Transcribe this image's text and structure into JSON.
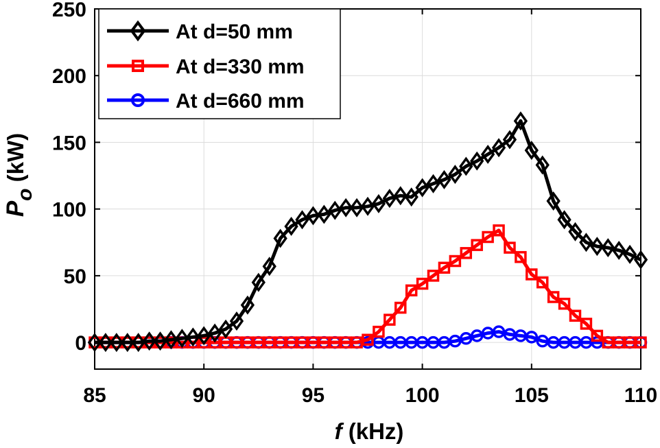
{
  "chart_data": {
    "type": "line",
    "title": "",
    "xlabel_symbol": "f",
    "xlabel_unit": " (kHz)",
    "ylabel_symbol": "P",
    "ylabel_subscript": "o",
    "ylabel_unit": " (kW)",
    "xlim": [
      85,
      110
    ],
    "ylim": [
      -20,
      250
    ],
    "xticks": [
      85,
      90,
      95,
      100,
      105,
      110
    ],
    "yticks": [
      0,
      50,
      100,
      150,
      200,
      250
    ],
    "grid": true,
    "legend_position": "top-left",
    "x": [
      85,
      85.5,
      86,
      86.5,
      87,
      87.5,
      88,
      88.5,
      89,
      89.5,
      90,
      90.5,
      91,
      91.5,
      92,
      92.5,
      93,
      93.5,
      94,
      94.5,
      95,
      95.5,
      96,
      96.5,
      97,
      97.5,
      98,
      98.5,
      99,
      99.5,
      100,
      100.5,
      101,
      101.5,
      102,
      102.5,
      103,
      103.5,
      104,
      104.5,
      105,
      105.5,
      106,
      106.5,
      107,
      107.5,
      108,
      108.5,
      109,
      109.5,
      110
    ],
    "series": [
      {
        "name": "At d=50 mm",
        "color": "#000000",
        "marker": "diamond",
        "values": [
          0,
          0,
          0,
          0,
          0,
          1,
          1,
          2,
          3,
          4,
          5,
          7,
          10,
          16,
          28,
          45,
          57,
          78,
          87,
          92,
          95,
          96,
          99,
          101,
          101,
          102,
          104,
          108,
          110,
          109,
          116,
          119,
          122,
          126,
          132,
          136,
          141,
          146,
          152,
          166,
          144,
          133,
          106,
          92,
          83,
          75,
          72,
          71,
          69,
          66,
          62
        ]
      },
      {
        "name": "At d=330 mm",
        "color": "#ff0000",
        "marker": "square",
        "values": [
          0,
          0,
          0,
          0,
          0,
          0,
          0,
          0,
          0,
          0,
          0,
          0,
          0,
          0,
          0,
          0,
          0,
          0,
          0,
          0,
          0,
          0,
          0,
          0,
          0,
          2,
          8,
          17,
          26,
          39,
          44,
          50,
          56,
          61,
          67,
          73,
          79,
          84,
          71,
          64,
          51,
          45,
          34,
          29,
          20,
          14,
          5,
          0,
          0,
          0,
          0
        ]
      },
      {
        "name": "At d=660 mm",
        "color": "#0000ff",
        "marker": "circle",
        "values": [
          0,
          0,
          0,
          0,
          0,
          0,
          0,
          0,
          0,
          0,
          0,
          0,
          0,
          0,
          0,
          0,
          0,
          0,
          0,
          0,
          0,
          0,
          0,
          0,
          0,
          0,
          0,
          0,
          0,
          0,
          0,
          0,
          0,
          1,
          3,
          5,
          7,
          8,
          6,
          5,
          4,
          1,
          0,
          0,
          0,
          0,
          0,
          0,
          0,
          0,
          0
        ]
      }
    ]
  }
}
